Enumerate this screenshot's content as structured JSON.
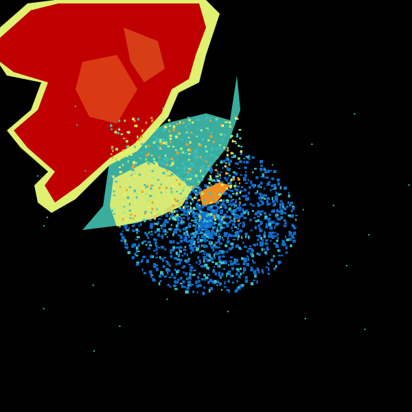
{
  "palette": {
    "background": "#000000",
    "heavy": "#c00000",
    "strong": "#e03a10",
    "moderate": "#f0a020",
    "light": "#f0f060",
    "lighter": "#a0f080",
    "weak": "#40c0c0",
    "weakest": "#1070d0"
  }
}
